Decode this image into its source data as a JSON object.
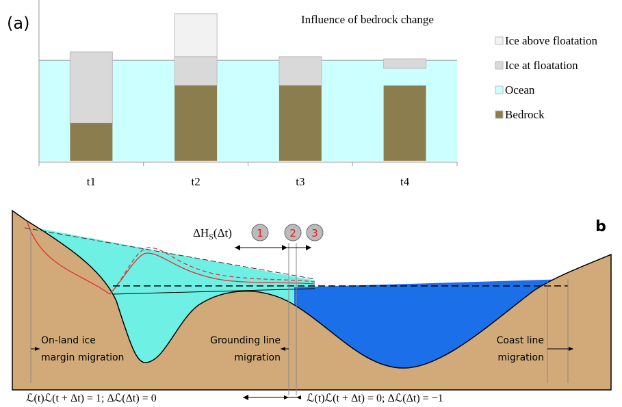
{
  "chart_data": {
    "type": "bar",
    "panel": "(a)",
    "title": "Influence of bedrock change",
    "categories": [
      "t1",
      "t2",
      "t3",
      "t4"
    ],
    "ylim": [
      0,
      100
    ],
    "series": [
      {
        "name": "Ice above floatation",
        "color": "#f2f2f2",
        "values": [
          null,
          [
            67.6,
            95.6
          ],
          null,
          null
        ]
      },
      {
        "name": "Ice at floatation",
        "color": "#d9d9d9",
        "values": [
          [
            24.4,
            70.7
          ],
          [
            48.9,
            67.6
          ],
          [
            48.9,
            67.6
          ],
          [
            60,
            66.2
          ]
        ]
      },
      {
        "name": "Bedrock",
        "color": "#8c7d4f",
        "values": [
          [
            0,
            24.4
          ],
          [
            0,
            48.9
          ],
          [
            0,
            48.9
          ],
          [
            0,
            48.9
          ]
        ]
      }
    ],
    "ocean": {
      "name": "Ocean",
      "color": "#ccffff",
      "level": 65.3
    }
  },
  "diagram": {
    "panel": "b",
    "delta_label": "ΔH",
    "delta_sub": "S",
    "delta_arg": "(Δt)",
    "steps": [
      "1",
      "2",
      "3"
    ],
    "labels": [
      "On-land ice",
      "margin migration",
      "Grounding line",
      "migration",
      "Coast line",
      "migration"
    ],
    "formulas": [
      "ℒ(t)ℒ(t + Δt) = 1;  Δℒ(Δt) = 0",
      "ℒ(t)ℒ(t + Δt) = 0;  Δℒ(Δt) = −1"
    ]
  }
}
